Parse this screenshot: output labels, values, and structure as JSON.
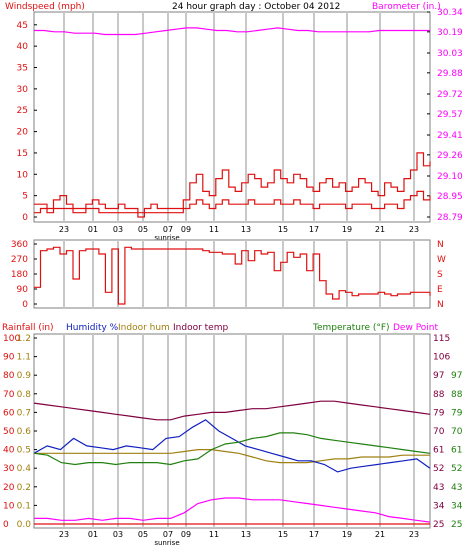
{
  "title": "24 hour graph day : October 04 2012",
  "colors": {
    "wind": "#e01010",
    "gust": "#e01010",
    "baro": "#ff00ff",
    "winddir": "#e01010",
    "rain": "#e01010",
    "humidity": "#1020c0",
    "indoor_hum": "#a08010",
    "indoor_temp": "#800040",
    "temperature": "#208010",
    "dewpoint": "#ff00ff",
    "grid": "#c8c8c8",
    "border": "#808080"
  },
  "hour_labels": [
    "23",
    "01",
    "03",
    "05",
    "07",
    "09",
    "11",
    "13",
    "15",
    "17",
    "19",
    "21",
    "23"
  ],
  "sunrise_label": "sunrise",
  "chart_data": [
    {
      "type": "line",
      "name": "wind-baro",
      "title": "24 hour graph day : October 04 2012",
      "left_label": "Windspeed (mph)",
      "right_label": "Barometer (in.)",
      "left_ticks": [
        "45",
        "40",
        "35",
        "30",
        "25",
        "20",
        "15",
        "10",
        "5",
        "0"
      ],
      "right_ticks": [
        "30.34",
        "30.19",
        "30.03",
        "29.88",
        "29.72",
        "29.57",
        "29.41",
        "29.26",
        "29.10",
        "28.95",
        "28.79"
      ],
      "ylim_left": [
        0,
        48
      ],
      "ylim_right": [
        28.79,
        30.34
      ],
      "x_labels": [
        "23",
        "01",
        "03",
        "05",
        "07",
        "09",
        "11",
        "13",
        "15",
        "17",
        "19",
        "21",
        "23"
      ],
      "series": [
        {
          "role": "gust",
          "values": [
            3,
            3,
            2,
            4,
            5,
            3,
            2,
            2,
            3,
            4,
            3,
            2,
            2,
            3,
            2,
            2,
            1,
            2,
            3,
            2,
            2,
            2,
            2,
            4,
            8,
            10,
            6,
            5,
            9,
            11,
            7,
            6,
            8,
            10,
            9,
            7,
            8,
            11,
            9,
            8,
            10,
            9,
            7,
            6,
            8,
            9,
            7,
            8,
            6,
            7,
            9,
            8,
            6,
            5,
            8,
            7,
            6,
            9,
            11,
            15,
            12,
            13
          ]
        },
        {
          "role": "wind",
          "values": [
            1,
            2,
            1,
            2,
            2,
            2,
            1,
            1,
            2,
            2,
            1,
            1,
            1,
            1,
            1,
            1,
            0,
            1,
            1,
            1,
            1,
            1,
            1,
            2,
            3,
            4,
            3,
            2,
            3,
            4,
            3,
            3,
            3,
            4,
            3,
            3,
            3,
            4,
            3,
            3,
            4,
            3,
            3,
            2,
            3,
            3,
            3,
            3,
            2,
            3,
            3,
            3,
            2,
            2,
            3,
            3,
            2,
            4,
            5,
            6,
            4,
            5
          ]
        },
        {
          "role": "baro",
          "values": [
            30.2,
            30.2,
            30.19,
            30.19,
            30.18,
            30.18,
            30.18,
            30.17,
            30.17,
            30.17,
            30.17,
            30.18,
            30.19,
            30.2,
            30.21,
            30.22,
            30.22,
            30.21,
            30.2,
            30.2,
            30.19,
            30.19,
            30.2,
            30.21,
            30.22,
            30.21,
            30.2,
            30.2,
            30.19,
            30.19,
            30.19,
            30.19,
            30.19,
            30.19,
            30.2,
            30.2,
            30.2,
            30.2,
            30.2,
            30.2
          ]
        }
      ]
    },
    {
      "type": "line",
      "name": "wind-direction",
      "left_ticks": [
        "360",
        "270",
        "180",
        "90",
        "0"
      ],
      "right_ticks": [
        "N",
        "W",
        "S",
        "E",
        "N"
      ],
      "ylim": [
        0,
        360
      ],
      "series": [
        {
          "role": "winddir",
          "values": [
            100,
            320,
            330,
            340,
            300,
            320,
            150,
            320,
            330,
            330,
            300,
            70,
            330,
            0,
            340,
            330,
            330,
            330,
            330,
            330,
            330,
            330,
            330,
            330,
            330,
            330,
            320,
            310,
            310,
            300,
            300,
            240,
            320,
            260,
            320,
            300,
            310,
            200,
            250,
            310,
            280,
            300,
            200,
            300,
            140,
            60,
            30,
            80,
            70,
            50,
            60,
            60,
            60,
            70,
            60,
            50,
            60,
            60,
            70,
            70,
            70,
            50
          ]
        }
      ]
    },
    {
      "type": "line",
      "name": "temp-humidity-rain",
      "left_label": "Rainfall (in)",
      "mid_labels": [
        "Humidity %",
        "Indoor hum",
        "Indoor temp"
      ],
      "right_label_1": "Temperature (°F)",
      "right_label_2": "Dew Point",
      "humidity_ticks": [
        "100",
        "90",
        "80",
        "70",
        "60",
        "50",
        "40",
        "30",
        "20",
        "10",
        "0"
      ],
      "rain_ticks": [
        "1.2",
        "1.1",
        "0.9",
        "0.8",
        "0.7",
        "0.6",
        "0.5",
        "0.4",
        "0.2",
        "0.1",
        "0.0"
      ],
      "temp_ticks_1": [
        "115",
        "106",
        "97",
        "88",
        "79",
        "70",
        "61",
        "52",
        "43",
        "34",
        "25"
      ],
      "temp_ticks_2": [
        "97",
        "88",
        "79",
        "70",
        "61",
        "52",
        "43",
        "34",
        "25"
      ],
      "x_labels": [
        "23",
        "01",
        "03",
        "05",
        "07",
        "09",
        "11",
        "13",
        "15",
        "17",
        "19",
        "21",
        "23"
      ],
      "series": [
        {
          "role": "indoor_temp",
          "axis": "humidity",
          "values": [
            65,
            64,
            63,
            62,
            61,
            60,
            59,
            58,
            57,
            56,
            56,
            58,
            59,
            60,
            60,
            61,
            62,
            62,
            63,
            64,
            65,
            66,
            66,
            65,
            64,
            63,
            62,
            61,
            60,
            59
          ]
        },
        {
          "role": "indoor_hum",
          "axis": "humidity",
          "values": [
            38,
            38,
            38,
            38,
            38,
            38,
            38,
            38,
            38,
            38,
            38,
            39,
            40,
            40,
            39,
            38,
            36,
            34,
            33,
            33,
            33,
            34,
            35,
            35,
            36,
            36,
            36,
            37,
            37,
            37
          ]
        },
        {
          "role": "humidity",
          "axis": "humidity",
          "values": [
            38,
            42,
            40,
            46,
            42,
            41,
            40,
            42,
            41,
            40,
            46,
            47,
            52,
            56,
            50,
            46,
            42,
            40,
            38,
            36,
            34,
            34,
            32,
            28,
            30,
            31,
            32,
            33,
            34,
            35,
            30
          ]
        },
        {
          "role": "temperature",
          "axis": "humidity",
          "values": [
            38,
            37,
            33,
            32,
            33,
            33,
            32,
            33,
            33,
            33,
            32,
            34,
            35,
            40,
            43,
            44,
            46,
            47,
            49,
            49,
            48,
            46,
            45,
            44,
            43,
            42,
            41,
            40,
            39,
            38
          ]
        },
        {
          "role": "dewpoint",
          "axis": "humidity",
          "values": [
            3,
            3,
            2,
            2,
            3,
            2,
            3,
            3,
            2,
            3,
            3,
            6,
            11,
            13,
            14,
            14,
            13,
            13,
            13,
            12,
            11,
            10,
            9,
            8,
            7,
            6,
            4,
            3,
            2,
            1
          ]
        },
        {
          "role": "rain",
          "axis": "rain",
          "values": [
            0,
            0,
            0,
            0,
            0,
            0,
            0,
            0,
            0,
            0,
            0,
            0,
            0,
            0,
            0,
            0,
            0,
            0,
            0,
            0,
            0,
            0,
            0,
            0,
            0,
            0,
            0,
            0,
            0,
            0
          ]
        }
      ]
    }
  ]
}
